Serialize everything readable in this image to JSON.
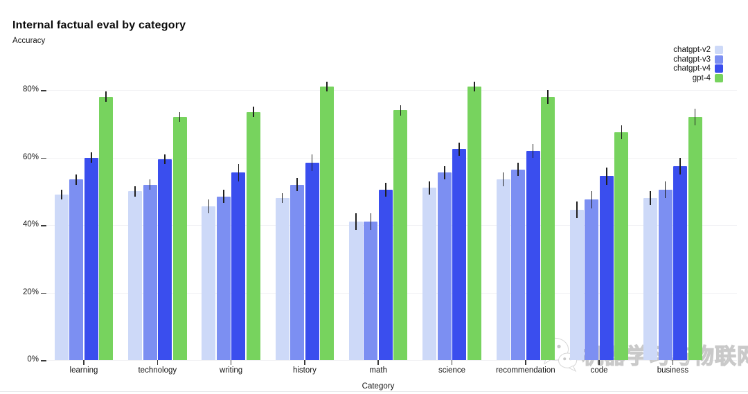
{
  "header": {
    "title": "Internal factual eval by category",
    "subtitle": "Accuracy"
  },
  "chart_data": {
    "type": "bar",
    "title": "Internal factual eval by category",
    "ylabel": "Accuracy",
    "xlabel": "Category",
    "grid": true,
    "legend_position": "top-right",
    "ylim": [
      0,
      85
    ],
    "y_ticks": [
      {
        "value": 0,
        "label": "0%"
      },
      {
        "value": 20,
        "label": "20%"
      },
      {
        "value": 40,
        "label": "40%"
      },
      {
        "value": 60,
        "label": "60%"
      },
      {
        "value": 80,
        "label": "80%"
      }
    ],
    "categories": [
      "learning",
      "technology",
      "writing",
      "history",
      "math",
      "science",
      "recommendation",
      "code",
      "business"
    ],
    "series": [
      {
        "name": "chatgpt-v2",
        "color": "#cdd9f8",
        "values": [
          49,
          50,
          45.5,
          48,
          41,
          51,
          53.5,
          44.5,
          48
        ],
        "errors": [
          1.5,
          1.5,
          2,
          1.5,
          2.5,
          2,
          2,
          2.5,
          2
        ]
      },
      {
        "name": "chatgpt-v3",
        "color": "#7c8ff2",
        "values": [
          53.5,
          52,
          48.5,
          52,
          41,
          55.5,
          56.5,
          47.5,
          50.5
        ],
        "errors": [
          1.5,
          1.5,
          2,
          2,
          2.5,
          2,
          2,
          2.5,
          2.5
        ]
      },
      {
        "name": "chatgpt-v4",
        "color": "#3a4eee",
        "values": [
          60,
          59.5,
          55.5,
          58.5,
          50.5,
          62.5,
          62,
          54.5,
          57.5
        ],
        "errors": [
          1.5,
          1.5,
          2.5,
          2.5,
          2,
          2,
          2,
          2.5,
          2.5
        ]
      },
      {
        "name": "gpt-4",
        "color": "#77d35e",
        "values": [
          78,
          72,
          73.5,
          81,
          74,
          81,
          78,
          67.5,
          72
        ],
        "errors": [
          1.5,
          1.5,
          1.5,
          1.5,
          1.5,
          1.5,
          2,
          2,
          2.5
        ]
      }
    ]
  },
  "watermark": {
    "icon": "wechat-icon",
    "text": "机器学习与物联网"
  },
  "colors": {
    "background": "#ffffff",
    "gridline": "#f1f1f4",
    "error_bar": "#1f1f1f",
    "axis_text": "#141414"
  }
}
